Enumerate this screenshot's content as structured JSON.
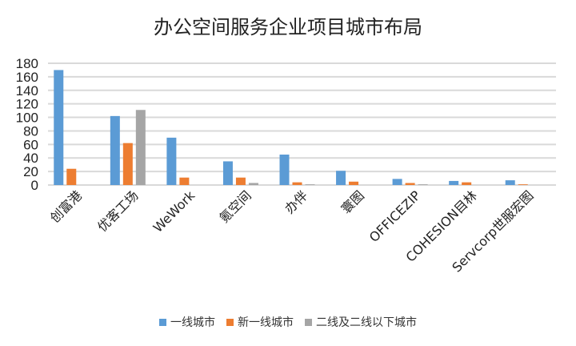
{
  "chart_data": {
    "type": "bar",
    "title": "办公空间服务企业项目城市布局",
    "xlabel": "",
    "ylabel": "",
    "categories": [
      "创富港",
      "优客工场",
      "WeWork",
      "氪空间",
      "办伴",
      "寰图",
      "OFFICEZIP",
      "COHESION目林",
      "Servcorp世服宏图"
    ],
    "series": [
      {
        "name": "一线城市",
        "color": "#5B9BD5",
        "values": [
          170,
          102,
          70,
          35,
          45,
          21,
          9,
          6,
          7
        ]
      },
      {
        "name": "新一线城市",
        "color": "#ED7D31",
        "values": [
          24,
          62,
          11,
          11,
          4,
          5,
          3,
          4,
          1
        ]
      },
      {
        "name": "二线及二线以下城市",
        "color": "#A5A5A5",
        "values": [
          0,
          111,
          0,
          3,
          1,
          0,
          1,
          0,
          0
        ]
      }
    ],
    "ylim": [
      0,
      180
    ],
    "yticks": [
      0,
      20,
      40,
      60,
      80,
      100,
      120,
      140,
      160,
      180
    ],
    "grid": true,
    "legend": "bottom"
  }
}
